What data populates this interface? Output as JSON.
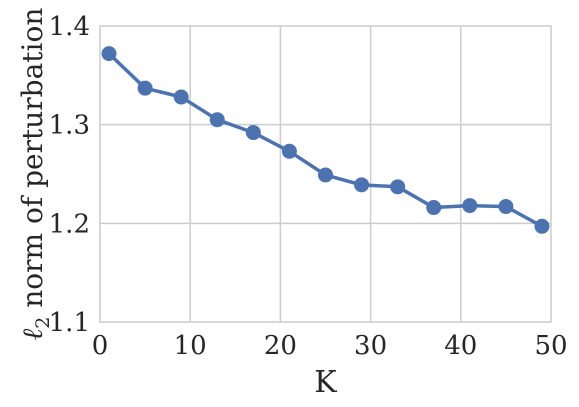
{
  "chart_data": {
    "type": "line",
    "xlabel": "K",
    "ylabel_symbol": "ℓ",
    "ylabel_subscript": "2",
    "ylabel_rest": " norm of perturbation",
    "xlim": [
      0,
      50
    ],
    "ylim": [
      1.1,
      1.4
    ],
    "xticks": [
      "0",
      "10",
      "20",
      "30",
      "40",
      "50"
    ],
    "yticks": [
      "1.1",
      "1.2",
      "1.3",
      "1.4"
    ],
    "grid": true,
    "color": "#4c72b0",
    "series": [
      {
        "x": [
          1,
          5,
          9,
          13,
          17,
          21,
          25,
          29,
          33,
          37,
          41,
          45,
          49
        ],
        "y": [
          1.372,
          1.337,
          1.328,
          1.305,
          1.292,
          1.273,
          1.249,
          1.239,
          1.237,
          1.216,
          1.218,
          1.217,
          1.197
        ]
      }
    ]
  }
}
